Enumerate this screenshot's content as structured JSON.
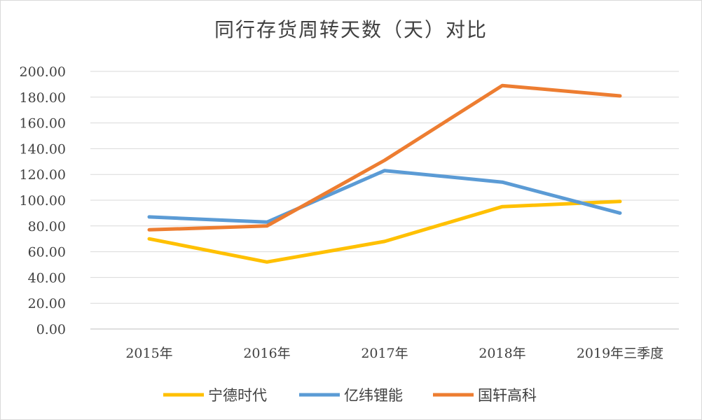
{
  "chart_data": {
    "type": "line",
    "title": "同行存货周转天数（天）对比",
    "xlabel": "",
    "ylabel": "",
    "categories": [
      "2015年",
      "2016年",
      "2017年",
      "2018年",
      "2019年三季度"
    ],
    "y_ticks": [
      "0.00",
      "20.00",
      "40.00",
      "60.00",
      "80.00",
      "100.00",
      "120.00",
      "140.00",
      "160.00",
      "180.00",
      "200.00"
    ],
    "ylim": [
      0,
      200
    ],
    "grid": "horizontal",
    "legend_position": "bottom",
    "series": [
      {
        "name": "宁德时代",
        "color": "#FFC000",
        "values": [
          70,
          52,
          68,
          95,
          99
        ]
      },
      {
        "name": "亿纬锂能",
        "color": "#5B9BD5",
        "values": [
          87,
          83,
          123,
          114,
          90
        ]
      },
      {
        "name": "国轩高科",
        "color": "#ED7D31",
        "values": [
          77,
          80,
          131,
          189,
          181
        ]
      }
    ]
  }
}
